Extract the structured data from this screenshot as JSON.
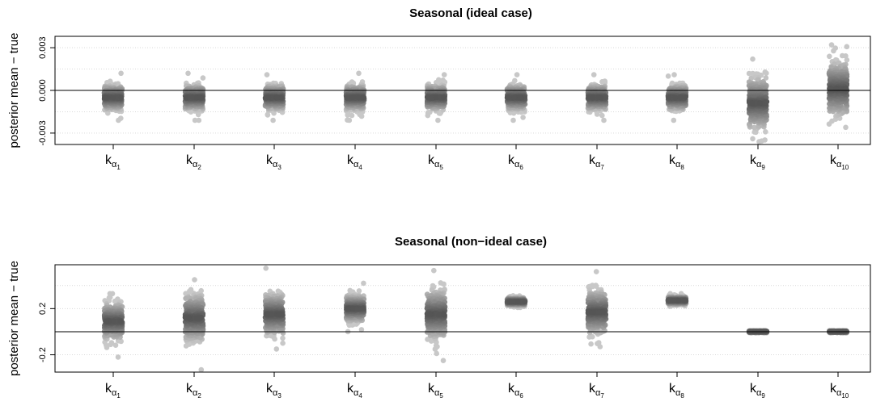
{
  "chart_data": [
    {
      "type": "scatter",
      "title": "Seasonal (ideal case)",
      "ylabel": "posterior mean − true",
      "ylim": [
        -0.0038,
        0.0038
      ],
      "yticks": [
        -0.003,
        0.0,
        0.003
      ],
      "ytick_labels": [
        "-0.003",
        "0.000",
        "0.003"
      ],
      "gridlines": [
        -0.0045,
        -0.003,
        -0.0015,
        0.0,
        0.0015,
        0.003
      ],
      "reference_line": 0,
      "categories": [
        {
          "base": "k",
          "sub": "α",
          "subsub": "1"
        },
        {
          "base": "k",
          "sub": "α",
          "subsub": "2"
        },
        {
          "base": "k",
          "sub": "α",
          "subsub": "3"
        },
        {
          "base": "k",
          "sub": "α",
          "subsub": "4"
        },
        {
          "base": "k",
          "sub": "α",
          "subsub": "5"
        },
        {
          "base": "k",
          "sub": "α",
          "subsub": "6"
        },
        {
          "base": "k",
          "sub": "α",
          "subsub": "7"
        },
        {
          "base": "k",
          "sub": "α",
          "subsub": "8"
        },
        {
          "base": "k",
          "sub": "α",
          "subsub": "9"
        },
        {
          "base": "k",
          "sub": "α",
          "subsub": "10"
        }
      ],
      "distributions": [
        {
          "center": -0.0005,
          "sd": 0.00042,
          "min": -0.0021,
          "max": 0.0012
        },
        {
          "center": -0.0005,
          "sd": 0.00042,
          "min": -0.0021,
          "max": 0.0012
        },
        {
          "center": -0.0005,
          "sd": 0.00042,
          "min": -0.0021,
          "max": 0.0011
        },
        {
          "center": -0.0005,
          "sd": 0.00042,
          "min": -0.0021,
          "max": 0.0012
        },
        {
          "center": -0.0005,
          "sd": 0.00042,
          "min": -0.0021,
          "max": 0.0011
        },
        {
          "center": -0.0005,
          "sd": 0.00042,
          "min": -0.0021,
          "max": 0.0011
        },
        {
          "center": -0.0005,
          "sd": 0.00042,
          "min": -0.0021,
          "max": 0.0011
        },
        {
          "center": -0.0005,
          "sd": 0.00042,
          "min": -0.0021,
          "max": 0.0011
        },
        {
          "center": -0.0009,
          "sd": 0.00085,
          "min": -0.0036,
          "max": 0.0022
        },
        {
          "center": 0.0001,
          "sd": 0.0009,
          "min": -0.0026,
          "max": 0.0032
        }
      ]
    },
    {
      "type": "scatter",
      "title": "Seasonal (non−ideal case)",
      "ylabel": "posterior mean − true",
      "ylim": [
        -0.35,
        0.58
      ],
      "yticks": [
        -0.2,
        0.2
      ],
      "ytick_labels": [
        "-0.2",
        "0.2"
      ],
      "gridlines": [
        -0.2,
        0.2,
        0.4
      ],
      "reference_line": 0,
      "categories": [
        {
          "base": "k",
          "sub": "α",
          "subsub": "1"
        },
        {
          "base": "k",
          "sub": "α",
          "subsub": "2"
        },
        {
          "base": "k",
          "sub": "α",
          "subsub": "3"
        },
        {
          "base": "k",
          "sub": "α",
          "subsub": "4"
        },
        {
          "base": "k",
          "sub": "α",
          "subsub": "5"
        },
        {
          "base": "k",
          "sub": "α",
          "subsub": "6"
        },
        {
          "base": "k",
          "sub": "α",
          "subsub": "7"
        },
        {
          "base": "k",
          "sub": "α",
          "subsub": "8"
        },
        {
          "base": "k",
          "sub": "α",
          "subsub": "9"
        },
        {
          "base": "k",
          "sub": "α",
          "subsub": "10"
        }
      ],
      "distributions": [
        {
          "center": 0.09,
          "sd": 0.075,
          "min": -0.22,
          "max": 0.33
        },
        {
          "center": 0.12,
          "sd": 0.095,
          "min": -0.33,
          "max": 0.45
        },
        {
          "center": 0.15,
          "sd": 0.085,
          "min": -0.15,
          "max": 0.55
        },
        {
          "center": 0.2,
          "sd": 0.055,
          "min": 0.0,
          "max": 0.42
        },
        {
          "center": 0.15,
          "sd": 0.1,
          "min": -0.25,
          "max": 0.53
        },
        {
          "center": 0.26,
          "sd": 0.018,
          "min": 0.21,
          "max": 0.31
        },
        {
          "center": 0.17,
          "sd": 0.09,
          "min": -0.13,
          "max": 0.52
        },
        {
          "center": 0.27,
          "sd": 0.018,
          "min": 0.22,
          "max": 0.33
        },
        {
          "center": 0.0,
          "sd": 0.004,
          "min": -0.01,
          "max": 0.01
        },
        {
          "center": 0.0,
          "sd": 0.004,
          "min": -0.01,
          "max": 0.01
        }
      ]
    }
  ],
  "colors": {
    "point_inner": "#555555",
    "point_outer": "#c8c8c8",
    "gridline": "#d9d9d9",
    "frame": "#000000"
  }
}
